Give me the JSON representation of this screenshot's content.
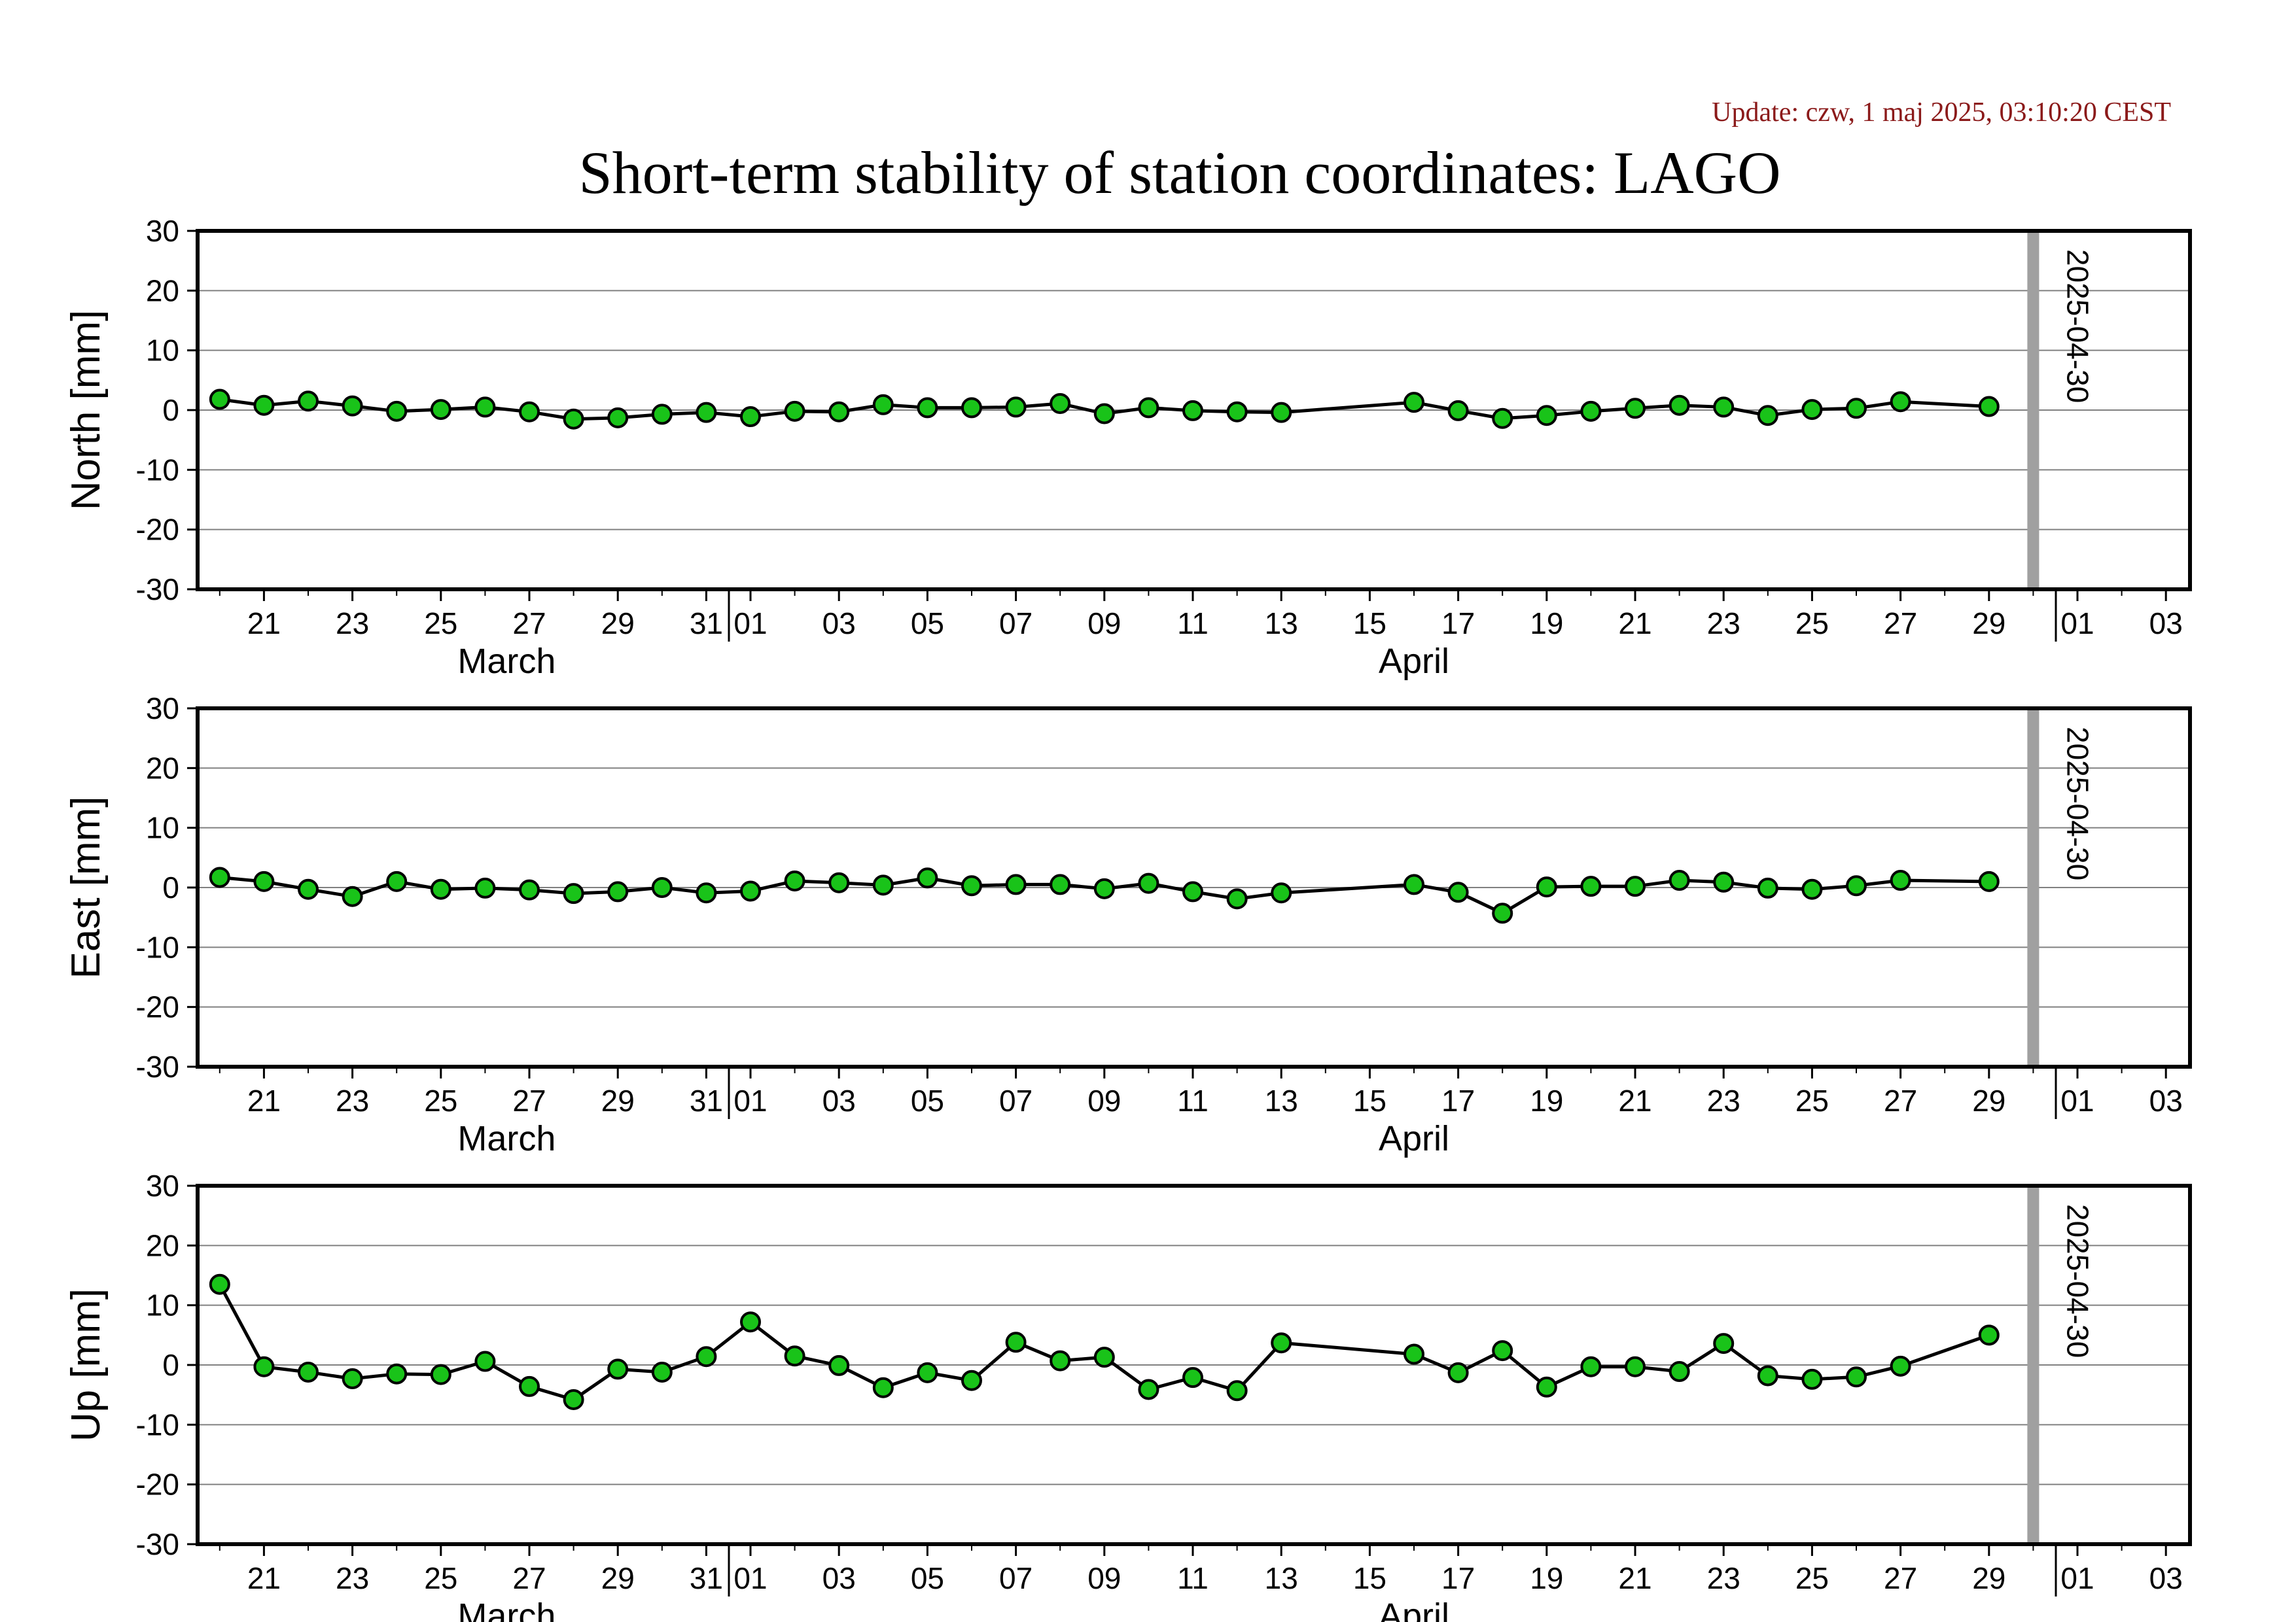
{
  "header": {
    "title": "Short-term stability of station coordinates: LAGO",
    "update": "Update: czw, 1 maj 2025, 03:10:20 CEST"
  },
  "chart_data": {
    "type": "line",
    "x_axis": {
      "tick_labels": [
        "21",
        "23",
        "25",
        "27",
        "29",
        "31",
        "01",
        "03",
        "05",
        "07",
        "09",
        "11",
        "13",
        "15",
        "17",
        "19",
        "21",
        "23",
        "25",
        "27",
        "29",
        "01",
        "03"
      ],
      "months": [
        "March",
        "April"
      ]
    },
    "marker": {
      "text": "2025-04-30",
      "color": "#a0a0a0"
    },
    "colors": {
      "marker_fill": "#19c319",
      "marker_edge": "#000000",
      "line": "#000000",
      "grid": "#808080"
    },
    "dates": [
      "2025-03-20",
      "2025-03-21",
      "2025-03-22",
      "2025-03-23",
      "2025-03-24",
      "2025-03-25",
      "2025-03-26",
      "2025-03-27",
      "2025-03-28",
      "2025-03-29",
      "2025-03-30",
      "2025-03-31",
      "2025-04-01",
      "2025-04-02",
      "2025-04-03",
      "2025-04-04",
      "2025-04-05",
      "2025-04-06",
      "2025-04-07",
      "2025-04-08",
      "2025-04-09",
      "2025-04-10",
      "2025-04-11",
      "2025-04-12",
      "2025-04-13",
      "2025-04-16",
      "2025-04-17",
      "2025-04-18",
      "2025-04-19",
      "2025-04-20",
      "2025-04-21",
      "2025-04-22",
      "2025-04-23",
      "2025-04-24",
      "2025-04-25",
      "2025-04-26",
      "2025-04-27",
      "2025-04-29"
    ],
    "panels": [
      {
        "ylabel": "North [mm]",
        "ylim": [
          -30,
          30
        ],
        "yticks": [
          "30",
          "20",
          "10",
          "0",
          "-10",
          "-20",
          "-30"
        ],
        "values": [
          1.8,
          0.8,
          1.5,
          0.7,
          -0.2,
          0.1,
          0.5,
          -0.3,
          -1.5,
          -1.3,
          -0.7,
          -0.4,
          -1.1,
          -0.2,
          -0.3,
          0.9,
          0.4,
          0.4,
          0.5,
          1.1,
          -0.6,
          0.4,
          -0.1,
          -0.3,
          -0.4,
          1.3,
          -0.1,
          -1.4,
          -0.9,
          -0.2,
          0.3,
          0.8,
          0.5,
          -0.9,
          0.1,
          0.3,
          1.4,
          0.6
        ]
      },
      {
        "ylabel": "East [mm]",
        "ylim": [
          -30,
          30
        ],
        "yticks": [
          "30",
          "20",
          "10",
          "0",
          "-10",
          "-20",
          "-30"
        ],
        "values": [
          1.7,
          1.0,
          -0.3,
          -1.5,
          1.0,
          -0.3,
          -0.1,
          -0.4,
          -1.0,
          -0.7,
          0.0,
          -0.9,
          -0.6,
          1.1,
          0.8,
          0.4,
          1.6,
          0.3,
          0.5,
          0.5,
          -0.2,
          0.7,
          -0.7,
          -1.9,
          -0.9,
          0.5,
          -0.8,
          -4.3,
          0.1,
          0.2,
          0.2,
          1.2,
          0.9,
          -0.1,
          -0.3,
          0.3,
          1.2,
          1.0
        ]
      },
      {
        "ylabel": "Up [mm]",
        "ylim": [
          -30,
          30
        ],
        "yticks": [
          "30",
          "20",
          "10",
          "0",
          "-10",
          "-20",
          "-30"
        ],
        "values": [
          13.5,
          -0.3,
          -1.2,
          -2.3,
          -1.5,
          -1.6,
          0.6,
          -3.6,
          -5.8,
          -0.7,
          -1.2,
          1.4,
          7.2,
          1.5,
          -0.1,
          -3.8,
          -1.3,
          -2.6,
          3.8,
          0.7,
          1.3,
          -4.1,
          -2.1,
          -4.3,
          3.7,
          1.8,
          -1.3,
          2.4,
          -3.7,
          -0.3,
          -0.3,
          -1.1,
          3.6,
          -1.8,
          -2.4,
          -2.0,
          -0.2,
          5.0
        ]
      }
    ]
  }
}
